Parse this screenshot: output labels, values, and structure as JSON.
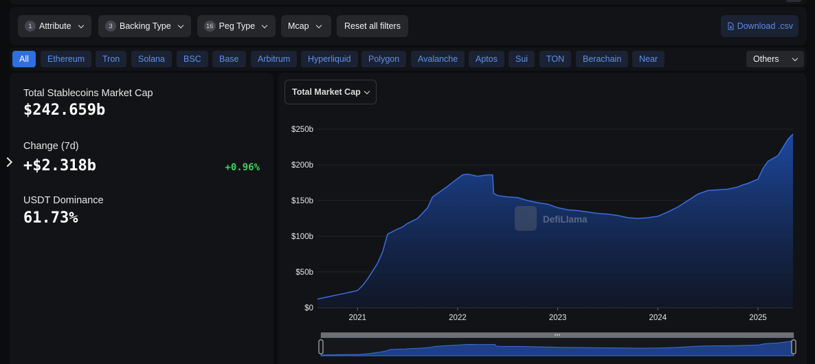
{
  "filters": {
    "attribute": {
      "count": "1",
      "label": "Attribute"
    },
    "backing_type": {
      "count": "3",
      "label": "Backing Type"
    },
    "peg_type": {
      "count": "16",
      "label": "Peg Type"
    },
    "mcap": {
      "label": "Mcap"
    },
    "reset_label": "Reset all filters",
    "download_label": "Download .csv"
  },
  "chains": {
    "items": [
      "All",
      "Ethereum",
      "Tron",
      "Solana",
      "BSC",
      "Base",
      "Arbitrum",
      "Hyperliquid",
      "Polygon",
      "Avalanche",
      "Aptos",
      "Sui",
      "TON",
      "Berachain",
      "Near"
    ],
    "active": "All",
    "others_label": "Others"
  },
  "stats": {
    "total_label": "Total Stablecoins Market Cap",
    "total_value": "$242.659b",
    "change_label": "Change (7d)",
    "change_value": "+$2.318b",
    "change_pct": "+0.96%",
    "dominance_label": "USDT Dominance",
    "dominance_value": "61.73%"
  },
  "chart_select_label": "Total Market Cap",
  "watermark": "DefiLlama",
  "colors": {
    "accent": "#2f6fe0",
    "line": "#3b6fe0",
    "positive": "#3ecf64"
  },
  "chart_data": {
    "type": "area",
    "ylim": [
      0,
      250
    ],
    "y_ticks": [
      0,
      50,
      100,
      150,
      200,
      250
    ],
    "y_tick_labels": [
      "$0",
      "$50b",
      "$100b",
      "$150b",
      "$200b",
      "$250b"
    ],
    "x_ticks": [
      2021,
      2022,
      2023,
      2024,
      2025
    ],
    "x_tick_labels": [
      "2021",
      "2022",
      "2023",
      "2024",
      "2025"
    ],
    "xlim": [
      2020.6,
      2025.35
    ],
    "series": [
      {
        "x": [
          2020.6,
          2020.7,
          2020.8,
          2020.9,
          2021.0,
          2021.05,
          2021.1,
          2021.2,
          2021.25,
          2021.3,
          2021.4,
          2021.45,
          2021.5,
          2021.6,
          2021.7,
          2021.75,
          2021.8,
          2021.9,
          2022.0,
          2022.05,
          2022.1,
          2022.2,
          2022.3,
          2022.35,
          2022.36,
          2022.4,
          2022.5,
          2022.6,
          2022.7,
          2022.8,
          2022.9,
          2023.0,
          2023.1,
          2023.2,
          2023.3,
          2023.4,
          2023.5,
          2023.6,
          2023.7,
          2023.8,
          2023.9,
          2024.0,
          2024.1,
          2024.2,
          2024.3,
          2024.4,
          2024.5,
          2024.6,
          2024.7,
          2024.8,
          2024.85,
          2024.9,
          2025.0,
          2025.05,
          2025.1,
          2025.2,
          2025.3,
          2025.35
        ],
        "y": [
          12,
          15,
          18,
          21,
          24,
          31,
          40,
          62,
          78,
          103,
          110,
          113,
          118,
          125,
          140,
          155,
          160,
          170,
          181,
          186,
          187,
          184,
          186,
          186,
          160,
          157,
          155,
          154,
          150,
          147,
          145,
          140,
          137,
          136,
          134,
          132,
          131,
          129,
          126,
          125,
          126,
          128,
          134,
          141,
          150,
          159,
          164,
          165,
          166,
          169,
          172,
          174,
          180,
          195,
          205,
          213,
          236,
          243
        ]
      }
    ]
  }
}
